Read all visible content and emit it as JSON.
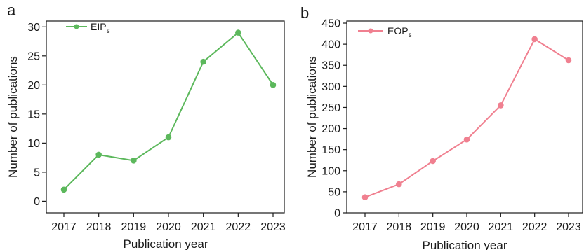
{
  "chart_data": [
    {
      "type": "line",
      "panel_label": "a",
      "x": [
        "2017",
        "2018",
        "2019",
        "2020",
        "2021",
        "2022",
        "2023"
      ],
      "series": [
        {
          "name": "EIP",
          "name_subscript": "s",
          "values": [
            2,
            8,
            7,
            11,
            24,
            29,
            20
          ],
          "color": "#5cb85c"
        }
      ],
      "xlabel": "Publication year",
      "ylabel": "Number of publications",
      "ylim": [
        -2,
        31
      ],
      "yticks": [
        0,
        5,
        10,
        15,
        20,
        25,
        30
      ],
      "grid": false,
      "legend": "top-left"
    },
    {
      "type": "line",
      "panel_label": "b",
      "x": [
        "2017",
        "2018",
        "2019",
        "2020",
        "2021",
        "2022",
        "2023"
      ],
      "series": [
        {
          "name": "EOP",
          "name_subscript": "s",
          "values": [
            37,
            68,
            123,
            174,
            255,
            412,
            362
          ],
          "color": "#f08090"
        }
      ],
      "xlabel": "Publication year",
      "ylabel": "Number of publications",
      "ylim": [
        0,
        455
      ],
      "yticks": [
        0,
        50,
        100,
        150,
        200,
        250,
        300,
        350,
        400,
        450
      ],
      "grid": false,
      "legend": "top-left"
    }
  ]
}
